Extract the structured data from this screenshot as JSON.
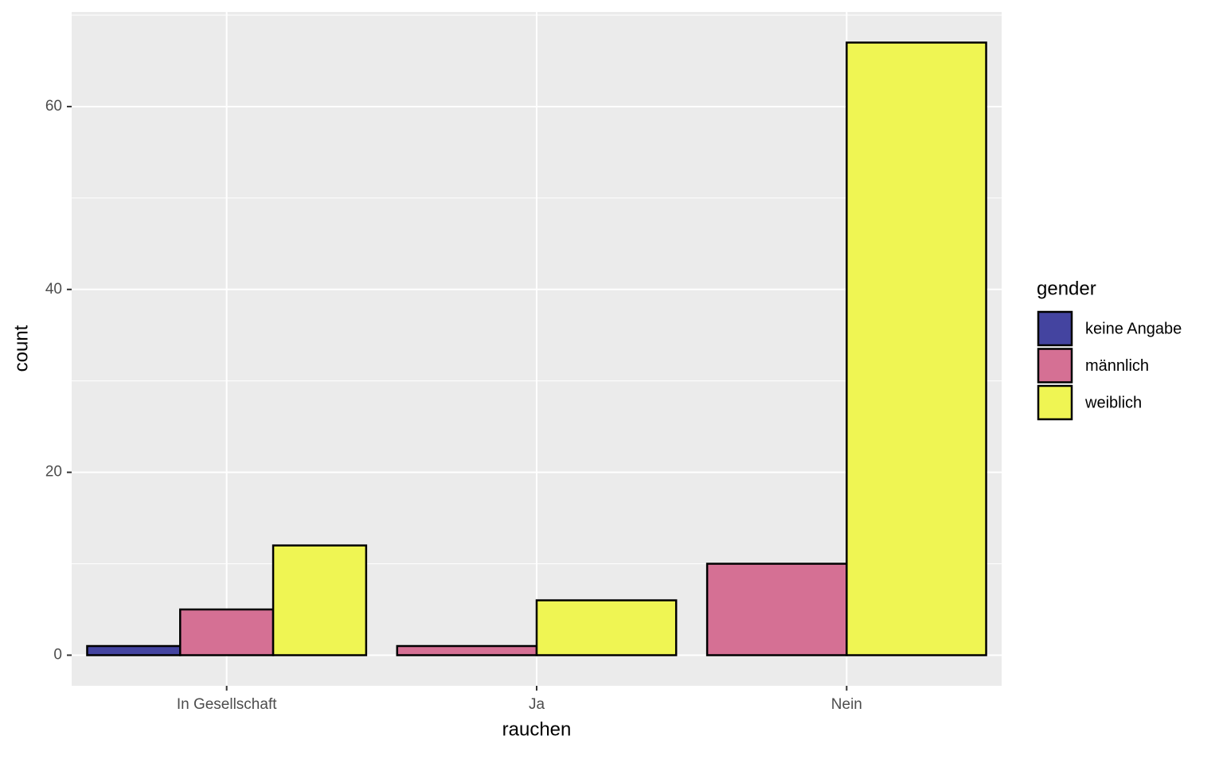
{
  "chart_data": {
    "type": "bar",
    "x_label": "rauchen",
    "y_label": "count",
    "legend_title": "gender",
    "categories": [
      "In Gesellschaft",
      "Ja",
      "Nein"
    ],
    "series": [
      {
        "name": "keine Angabe",
        "color": "#4444a0",
        "values": [
          1,
          null,
          null
        ]
      },
      {
        "name": "männlich",
        "color": "#d57094",
        "values": [
          5,
          1,
          10
        ]
      },
      {
        "name": "weiblich",
        "color": "#eff553",
        "values": [
          12,
          6,
          67
        ]
      }
    ],
    "ylim": [
      -3.35,
      70.35
    ],
    "yticks": [
      0,
      20,
      40,
      60
    ],
    "grid": true,
    "legend": "right"
  }
}
